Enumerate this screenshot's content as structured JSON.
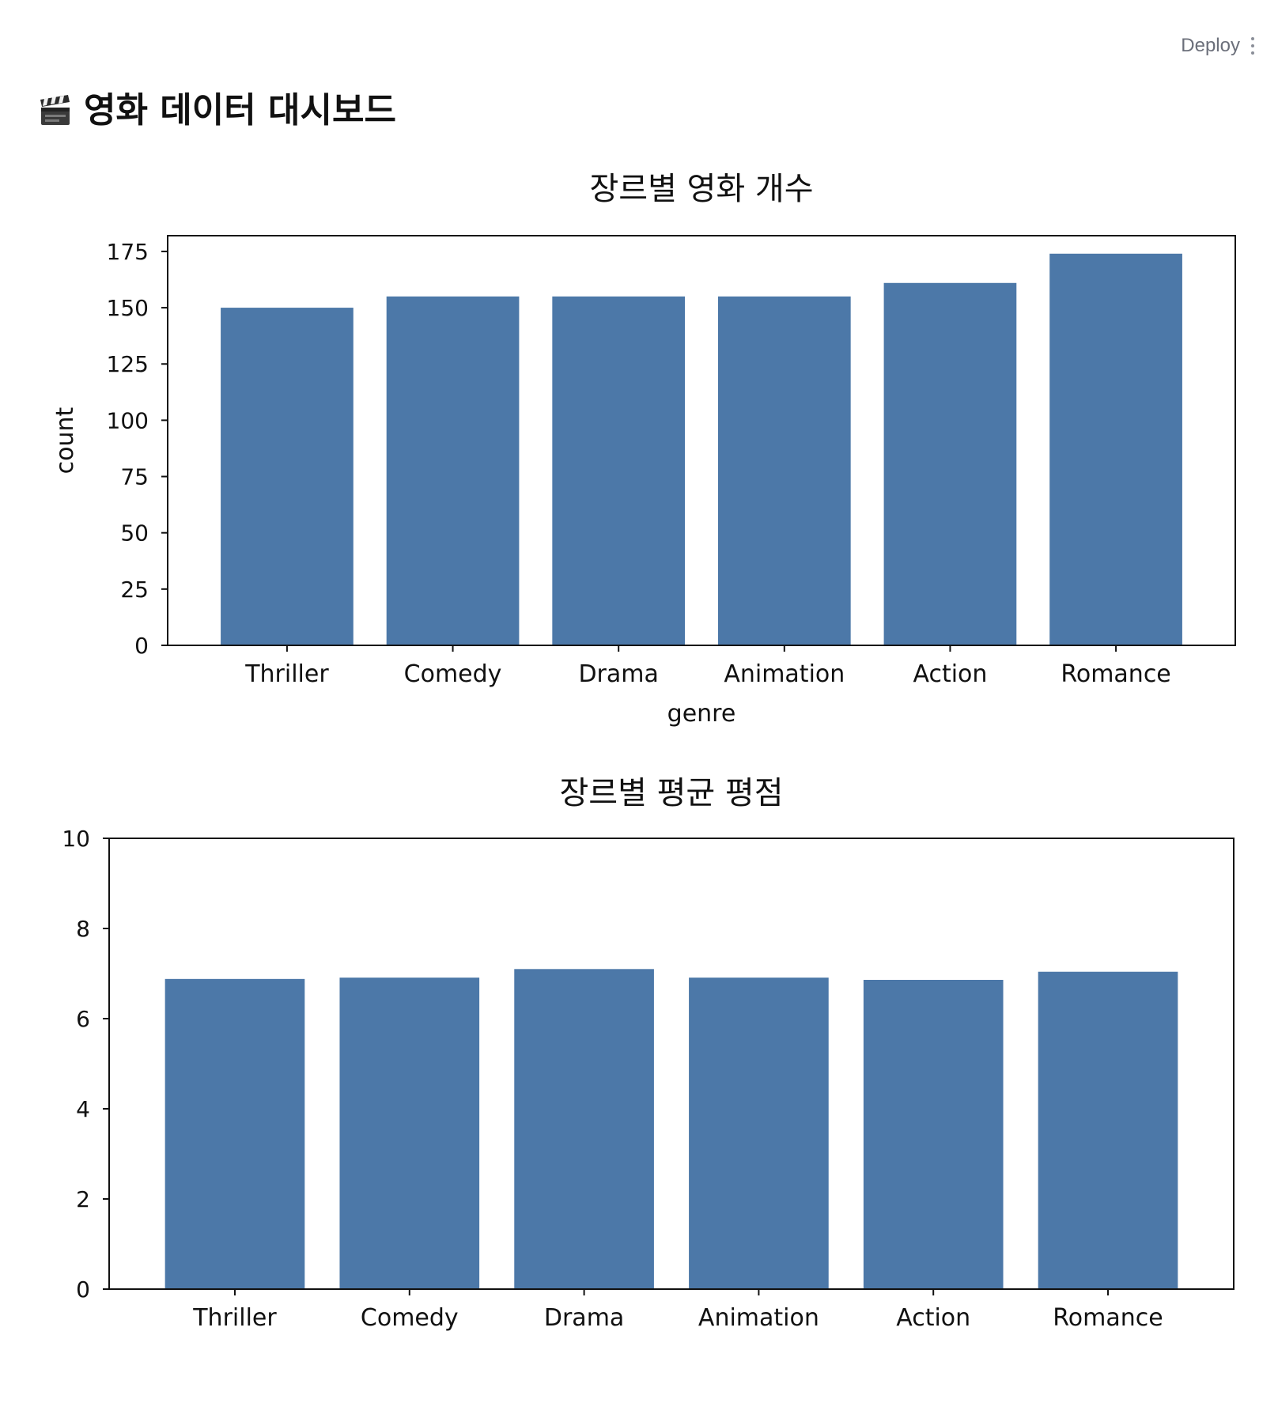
{
  "app": {
    "deploy_label": "Deploy",
    "title": "영화 데이터 대시보드",
    "title_icon": "clapper-board-icon"
  },
  "colors": {
    "bar": "#4c78a8",
    "axis": "#111111",
    "deploy_text": "#6b6f7a"
  },
  "chart_data": [
    {
      "type": "bar",
      "title": "장르별 영화 개수",
      "xlabel": "genre",
      "ylabel": "count",
      "categories": [
        "Thriller",
        "Comedy",
        "Drama",
        "Animation",
        "Action",
        "Romance"
      ],
      "values": [
        150,
        155,
        155,
        155,
        161,
        174
      ],
      "ylim": [
        0,
        182
      ],
      "yticks": [
        0,
        25,
        50,
        75,
        100,
        125,
        150,
        175
      ],
      "grid": false
    },
    {
      "type": "bar",
      "title": "장르별 평균 평점",
      "xlabel": "",
      "ylabel": "",
      "categories": [
        "Thriller",
        "Comedy",
        "Drama",
        "Animation",
        "Action",
        "Romance"
      ],
      "values": [
        6.88,
        6.91,
        7.1,
        6.91,
        6.86,
        7.04
      ],
      "ylim": [
        0,
        10
      ],
      "yticks": [
        0,
        2,
        4,
        6,
        8,
        10
      ],
      "grid": false
    }
  ]
}
